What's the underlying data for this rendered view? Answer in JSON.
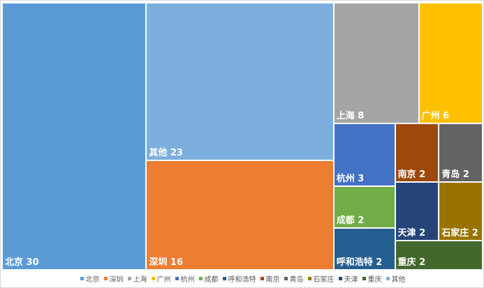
{
  "chart_data": {
    "type": "treemap",
    "title": "",
    "legend_position": "bottom",
    "series": [
      {
        "name": "北京",
        "value": 30,
        "color": "#5b9bd5"
      },
      {
        "name": "其他",
        "value": 23,
        "color": "#7cafdd"
      },
      {
        "name": "深圳",
        "value": 16,
        "color": "#ed7d31"
      },
      {
        "name": "上海",
        "value": 8,
        "color": "#a5a5a5"
      },
      {
        "name": "广州",
        "value": 6,
        "color": "#ffc000"
      },
      {
        "name": "杭州",
        "value": 3,
        "color": "#4472c4"
      },
      {
        "name": "成都",
        "value": 2,
        "color": "#70ad47"
      },
      {
        "name": "呼和浩特",
        "value": 2,
        "color": "#255e91"
      },
      {
        "name": "南京",
        "value": 2,
        "color": "#9e480e"
      },
      {
        "name": "青岛",
        "value": 2,
        "color": "#636363"
      },
      {
        "name": "天津",
        "value": 2,
        "color": "#264478"
      },
      {
        "name": "石家庄",
        "value": 2,
        "color": "#997300"
      },
      {
        "name": "重庆",
        "value": 2,
        "color": "#43682b"
      }
    ],
    "legend_order": [
      "北京",
      "深圳",
      "上海",
      "广州",
      "杭州",
      "成都",
      "呼和浩特",
      "南京",
      "青岛",
      "石家庄",
      "天津",
      "重庆",
      "其他"
    ]
  }
}
